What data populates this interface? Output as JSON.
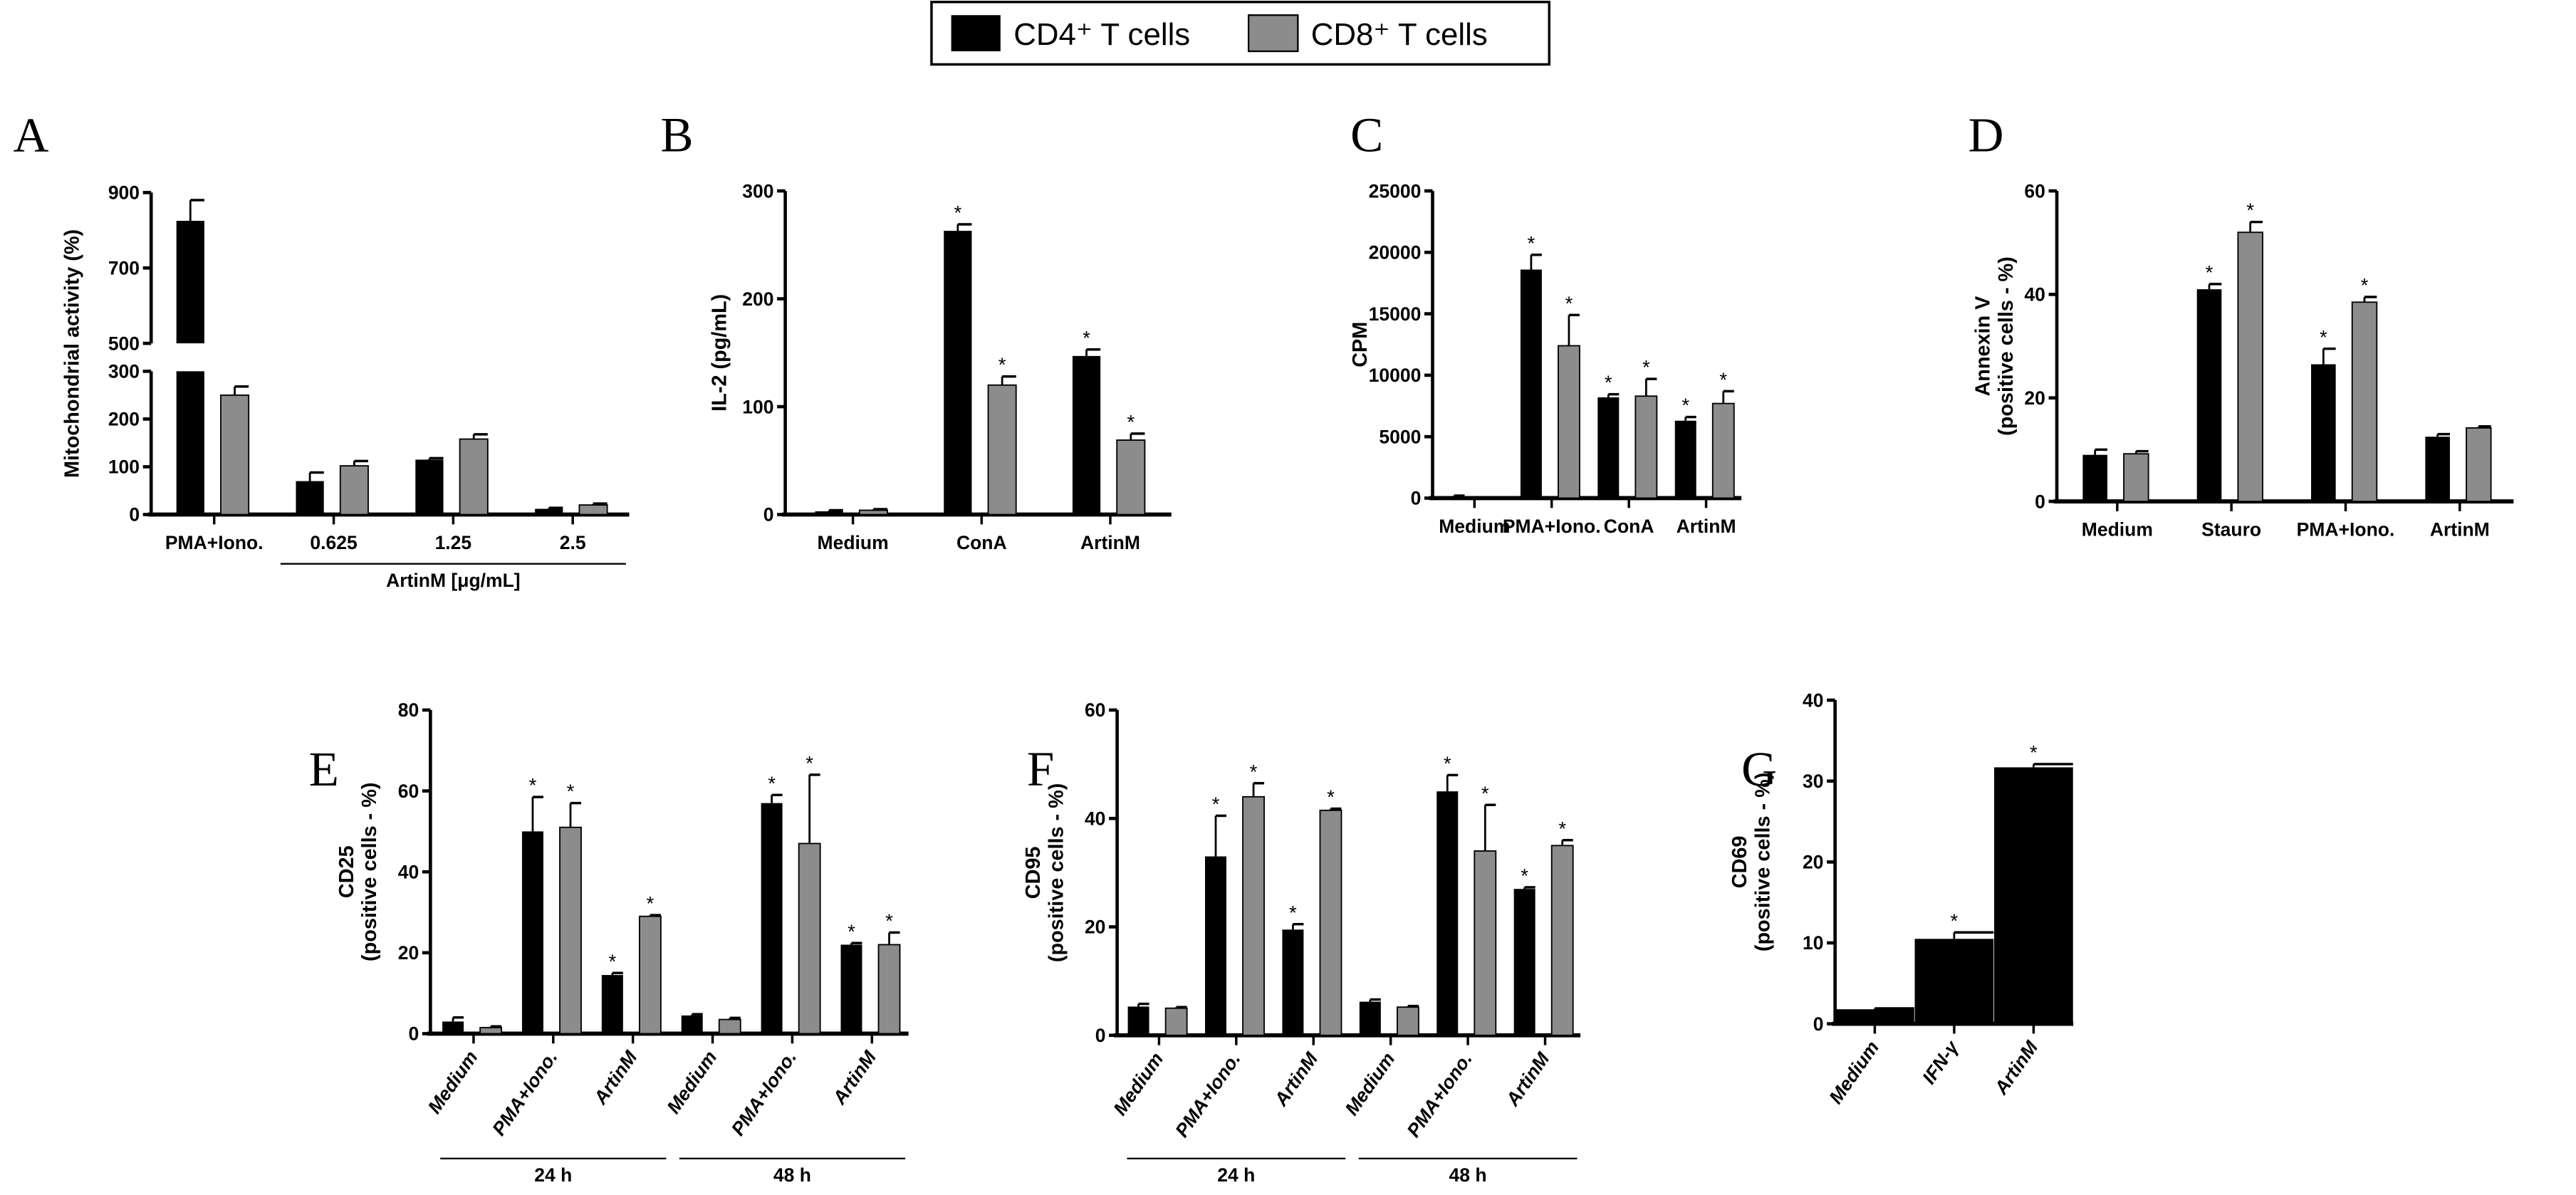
{
  "legend": {
    "series": [
      {
        "name": "CD4⁺ T cells",
        "color": "#000000"
      },
      {
        "name": "CD8⁺ T cells",
        "color": "#8c8c8c"
      }
    ]
  },
  "chart_data": [
    {
      "id": "A",
      "type": "bar",
      "letter": "A",
      "ylabel": [
        "Mitochondrial activity (%)"
      ],
      "axis_break": [
        300,
        500
      ],
      "ylim": [
        0,
        900
      ],
      "yticks": [
        0,
        100,
        200,
        300,
        500,
        700,
        900
      ],
      "categories": [
        "PMA+Iono.",
        "0.625",
        "1.25",
        "2.5"
      ],
      "group_labels": [
        {
          "label": "ArtinM [μg/mL]",
          "from": 1,
          "to": 3
        }
      ],
      "series": [
        {
          "name": "CD4⁺ T cells",
          "values": [
            825,
            70,
            115,
            12
          ],
          "errors": [
            55,
            18,
            3,
            2
          ],
          "stars": [
            false,
            false,
            false,
            false
          ]
        },
        {
          "name": "CD8⁺ T cells",
          "values": [
            250,
            102,
            158,
            20
          ],
          "errors": [
            18,
            10,
            10,
            3
          ],
          "stars": [
            false,
            false,
            false,
            false
          ]
        }
      ]
    },
    {
      "id": "B",
      "type": "bar",
      "letter": "B",
      "ylabel": [
        "IL-2 (pg/mL)"
      ],
      "ylim": [
        0,
        300
      ],
      "yticks": [
        0,
        100,
        200,
        300
      ],
      "categories": [
        "Medium",
        "ConA",
        "ArtinM"
      ],
      "series": [
        {
          "name": "CD4⁺ T cells",
          "values": [
            3,
            263,
            147
          ],
          "errors": [
            1,
            6,
            6
          ],
          "stars": [
            false,
            true,
            true
          ]
        },
        {
          "name": "CD8⁺ T cells",
          "values": [
            4,
            120,
            69
          ],
          "errors": [
            1,
            8,
            6
          ],
          "stars": [
            false,
            true,
            true
          ]
        }
      ]
    },
    {
      "id": "C",
      "type": "bar",
      "letter": "C",
      "ylabel": [
        "CPM"
      ],
      "ylim": [
        0,
        25000
      ],
      "yticks": [
        0,
        5000,
        10000,
        15000,
        20000,
        25000
      ],
      "categories": [
        "Medium",
        "PMA+Iono.",
        "ConA",
        "ArtinM"
      ],
      "series": [
        {
          "name": "CD4⁺ T cells",
          "values": [
            150,
            18600,
            8200,
            6300
          ],
          "errors": [
            50,
            1200,
            250,
            300
          ],
          "stars": [
            false,
            true,
            true,
            true
          ]
        },
        {
          "name": "CD8⁺ T cells",
          "values": [
            50,
            12400,
            8300,
            7700
          ],
          "errors": [
            20,
            2500,
            1400,
            1000
          ],
          "stars": [
            false,
            true,
            true,
            true
          ]
        }
      ]
    },
    {
      "id": "D",
      "type": "bar",
      "letter": "D",
      "ylabel": [
        "Annexin V",
        "(positive cells - %)"
      ],
      "ylim": [
        0,
        60
      ],
      "yticks": [
        0,
        20,
        40,
        60
      ],
      "categories": [
        "Medium",
        "Stauro",
        "PMA+Iono.",
        "ArtinM"
      ],
      "series": [
        {
          "name": "CD4⁺ T cells",
          "values": [
            9,
            41,
            26.5,
            12.5
          ],
          "errors": [
            1,
            1,
            3,
            0.5
          ],
          "stars": [
            false,
            true,
            true,
            false
          ]
        },
        {
          "name": "CD8⁺ T cells",
          "values": [
            9.2,
            52,
            38.5,
            14.2
          ],
          "errors": [
            0.5,
            2,
            1,
            0.3
          ],
          "stars": [
            false,
            true,
            true,
            false
          ]
        }
      ]
    },
    {
      "id": "E",
      "type": "bar",
      "letter": "E",
      "ylabel": [
        "CD25",
        "(positive cells - %)"
      ],
      "ylim": [
        0,
        80
      ],
      "yticks": [
        0,
        20,
        40,
        60,
        80
      ],
      "categories": [
        "Medium",
        "PMA+Iono.",
        "ArtinM",
        "Medium",
        "PMA+Iono.",
        "ArtinM"
      ],
      "group_labels": [
        {
          "label": "24 h",
          "from": 0,
          "to": 2
        },
        {
          "label": "48 h",
          "from": 3,
          "to": 5
        }
      ],
      "series": [
        {
          "name": "CD4⁺ T cells",
          "values": [
            3,
            50,
            14.5,
            4.5,
            57,
            22
          ],
          "errors": [
            1,
            8.5,
            0.5,
            0.3,
            2,
            0.4
          ],
          "stars": [
            false,
            true,
            true,
            false,
            true,
            true
          ]
        },
        {
          "name": "CD8⁺ T cells",
          "values": [
            1.5,
            51,
            29,
            3.5,
            47,
            22
          ],
          "errors": [
            0.3,
            6,
            0.3,
            0.4,
            17,
            3
          ],
          "stars": [
            false,
            true,
            true,
            false,
            true,
            true
          ]
        }
      ]
    },
    {
      "id": "F",
      "type": "bar",
      "letter": "F",
      "ylabel": [
        "CD95",
        "(positive cells - %)"
      ],
      "ylim": [
        0,
        60
      ],
      "yticks": [
        0,
        20,
        40,
        60
      ],
      "categories": [
        "Medium",
        "PMA+Iono.",
        "ArtinM",
        "Medium",
        "PMA+Iono.",
        "ArtinM"
      ],
      "group_labels": [
        {
          "label": "24 h",
          "from": 0,
          "to": 2
        },
        {
          "label": "48 h",
          "from": 3,
          "to": 5
        }
      ],
      "series": [
        {
          "name": "CD4⁺ T cells",
          "values": [
            5.3,
            33,
            19.5,
            6.2,
            45,
            27
          ],
          "errors": [
            0.5,
            7.5,
            1,
            0.4,
            3,
            0.3
          ],
          "stars": [
            false,
            true,
            true,
            false,
            true,
            true
          ]
        },
        {
          "name": "CD8⁺ T cells",
          "values": [
            5,
            44,
            41.5,
            5.2,
            34,
            35
          ],
          "errors": [
            0.2,
            2.5,
            0.3,
            0.2,
            8.5,
            1
          ],
          "stars": [
            false,
            true,
            true,
            false,
            true,
            true
          ]
        }
      ]
    },
    {
      "id": "G",
      "type": "bar",
      "letter": "G",
      "ylabel": [
        "CD69",
        "(positive cells - %)"
      ],
      "ylim": [
        0,
        40
      ],
      "yticks": [
        0,
        10,
        20,
        30,
        40
      ],
      "categories": [
        "Medium",
        "IFN-γ",
        "ArtinM"
      ],
      "series": [
        {
          "name": "CD4⁺ T cells",
          "values": [
            1.8,
            10.5,
            31.7
          ],
          "errors": [
            0.1,
            0.8,
            0.4
          ],
          "stars": [
            false,
            true,
            true
          ]
        }
      ]
    }
  ]
}
